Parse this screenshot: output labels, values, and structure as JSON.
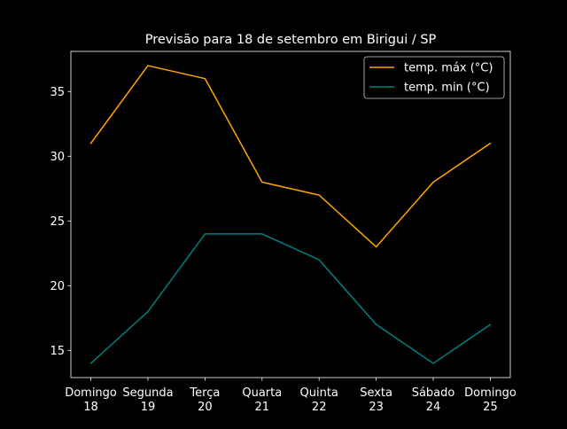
{
  "chart_data": {
    "type": "line",
    "title": "Previsão para 18 de setembro em Birigui / SP",
    "xlabel": "",
    "ylabel": "",
    "categories": [
      [
        "Domingo",
        "18"
      ],
      [
        "Segunda",
        "19"
      ],
      [
        "Terça",
        "20"
      ],
      [
        "Quarta",
        "21"
      ],
      [
        "Quinta",
        "22"
      ],
      [
        "Sexta",
        "23"
      ],
      [
        "Sábado",
        "24"
      ],
      [
        "Domingo",
        "25"
      ]
    ],
    "ylim": [
      12.9,
      38.1
    ],
    "yticks": [
      15,
      20,
      25,
      30,
      35
    ],
    "grid": false,
    "legend_position": "top-right",
    "background": "#000000",
    "foreground": "#ffffff",
    "series": [
      {
        "name": "temp. máx (°C)",
        "color": "#ffa500",
        "values": [
          31,
          37,
          36,
          28,
          27,
          23,
          28,
          31
        ]
      },
      {
        "name": "temp. min (°C)",
        "color": "#008080",
        "values": [
          14,
          18,
          24,
          24,
          22,
          17,
          14,
          17
        ]
      }
    ]
  }
}
